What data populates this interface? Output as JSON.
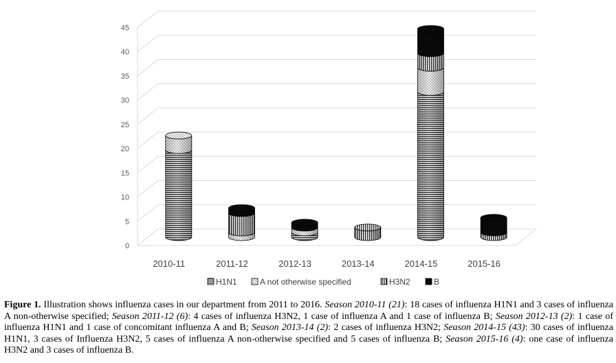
{
  "chart_data": {
    "type": "bar",
    "stacked": true,
    "style": "3d-cylinder",
    "categories": [
      "2010-11",
      "2011-12",
      "2012-13",
      "2013-14",
      "2014-15",
      "2015-16"
    ],
    "series": [
      {
        "name": "H1N1",
        "values": [
          18,
          0,
          1,
          0,
          30,
          0
        ],
        "pattern": "horizontal-lines"
      },
      {
        "name": "A not otherwise specified",
        "values": [
          3,
          1,
          1,
          0,
          5,
          0
        ],
        "pattern": "crosshatch-light"
      },
      {
        "name": "H3N2",
        "values": [
          0,
          4,
          0,
          2,
          3,
          1
        ],
        "pattern": "vertical-lines"
      },
      {
        "name": "B",
        "values": [
          0,
          1,
          1,
          0,
          5,
          3
        ],
        "pattern": "solid-black"
      }
    ],
    "yticks": [
      "0",
      "5",
      "10",
      "15",
      "20",
      "25",
      "30",
      "35",
      "40",
      "45"
    ],
    "ylim": [
      0,
      45
    ],
    "grid": true,
    "legend_position": "bottom"
  },
  "caption": {
    "label": "Figure 1.",
    "text1": " Illustration shows influenza cases in our department from 2011 to 2016. ",
    "s1": "Season 2010-11 (21)",
    "t1": ": 18 cases of influenza H1N1 and 3 cases of influenza A non-otherwise specified; ",
    "s2": "Season 2011-12 (6)",
    "t2": ": 4 cases of influenza H3N2, 1 case of influenza A and 1 case of influenza B; ",
    "s3": "Season 2012-13 (2)",
    "t3": ": 1 case of influenza H1N1 and 1 case of concomitant influenza A and B; ",
    "s4": "Season 2013-14 (2)",
    "t4": ": 2 cases of influenza H3N2; ",
    "s5": "Season 2014-15 (43)",
    "t5": ": 30 cases of influenza H1N1, 3 cases of Influenza H3N2, 5 cases of influenza A non-otherwise specified and 5 cases of influenza B; ",
    "s6": "Season 2015-16 (4)",
    "t6": ": one case of influenza H3N2 and 3 cases of influenza B."
  }
}
